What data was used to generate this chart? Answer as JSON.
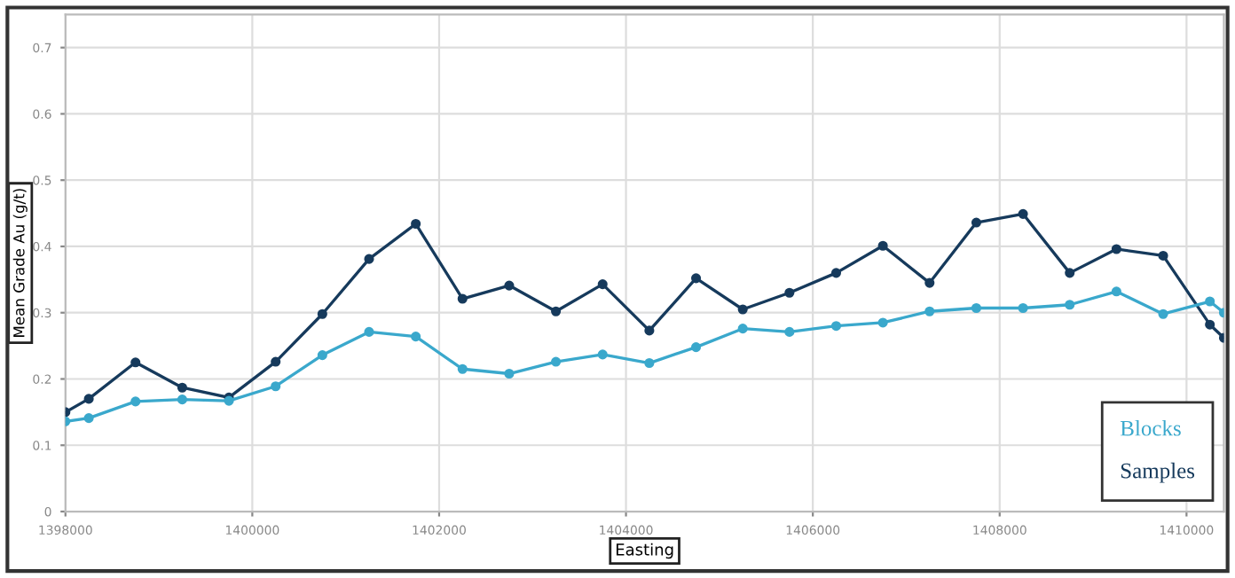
{
  "chart_data": {
    "type": "line",
    "xlabel": "Easting",
    "ylabel": "Mean Grade Au (g/t)",
    "x": [
      1398000,
      1398250,
      1398750,
      1399250,
      1399750,
      1400250,
      1400750,
      1401250,
      1401750,
      1402250,
      1402750,
      1403250,
      1403750,
      1404250,
      1404750,
      1405250,
      1405750,
      1406250,
      1406750,
      1407250,
      1407750,
      1408250,
      1408750,
      1409250,
      1409750,
      1410250,
      1410400
    ],
    "series": [
      {
        "name": "Blocks",
        "color": "#3aa8cc",
        "values": [
          0.136,
          0.141,
          0.166,
          0.169,
          0.167,
          0.189,
          0.236,
          0.271,
          0.264,
          0.215,
          0.208,
          0.226,
          0.237,
          0.224,
          0.248,
          0.276,
          0.271,
          0.28,
          0.285,
          0.302,
          0.307,
          0.307,
          0.312,
          0.332,
          0.298,
          0.317,
          0.3
        ]
      },
      {
        "name": "Samples",
        "color": "#163a5c",
        "values": [
          0.15,
          0.17,
          0.225,
          0.187,
          0.172,
          0.226,
          0.298,
          0.381,
          0.434,
          0.321,
          0.341,
          0.302,
          0.343,
          0.273,
          0.352,
          0.305,
          0.33,
          0.36,
          0.401,
          0.345,
          0.436,
          0.449,
          0.36,
          0.396,
          0.386,
          0.282,
          0.262
        ]
      }
    ],
    "xlim": [
      1398000,
      1410400
    ],
    "xticks": [
      1398000,
      1400000,
      1402000,
      1404000,
      1406000,
      1408000,
      1410000
    ],
    "ylim": [
      0,
      0.75
    ],
    "yticks": [
      0,
      0.1,
      0.2,
      0.3,
      0.4,
      0.5,
      0.6,
      0.7
    ],
    "grid": true,
    "legend": "bottom right",
    "marker": "circle",
    "line_style": "solid"
  }
}
